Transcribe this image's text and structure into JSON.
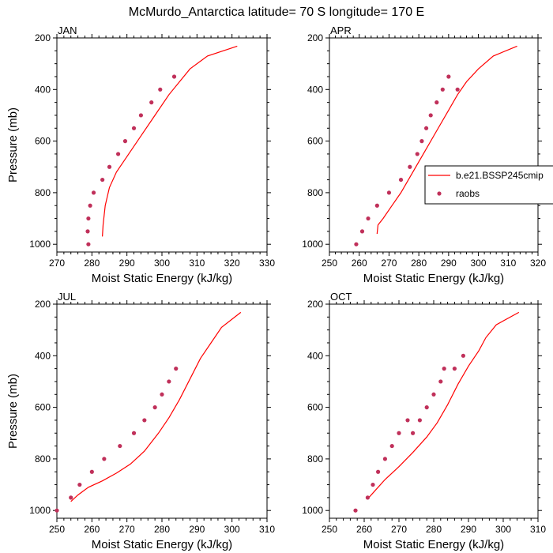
{
  "title": "McMurdo_Antarctica  latitude= 70 S longitude= 170 E",
  "colors": {
    "model": "#ff0000",
    "obs": "#c0305a",
    "axis": "#000000"
  },
  "legend": {
    "placement": "right-middle",
    "model_label": "b.e21.BSSP245cmip",
    "obs_label": "raobs"
  },
  "chart_data": [
    {
      "type": "line",
      "title": "JAN",
      "xlabel": "Moist Static Energy (kJ/kg)",
      "ylabel": "Pressure (mb)",
      "xlim": [
        270,
        330
      ],
      "ylim": [
        1030,
        200
      ],
      "xticks": [
        270,
        280,
        290,
        300,
        310,
        320,
        330
      ],
      "yticks": [
        200,
        400,
        600,
        800,
        1000
      ],
      "series": [
        {
          "name": "b.e21.BSSP245cmip",
          "kind": "line",
          "x": [
            283,
            283.2,
            283.8,
            285,
            287,
            290,
            294,
            298,
            302,
            305,
            308,
            313,
            321.5
          ],
          "y": [
            970,
            925,
            850,
            780,
            720,
            660,
            580,
            500,
            420,
            370,
            320,
            270,
            232
          ]
        },
        {
          "name": "raobs",
          "kind": "markers",
          "x": [
            279,
            278.8,
            279,
            279.5,
            280.5,
            283,
            285,
            287.5,
            289.5,
            292,
            294,
            297,
            299.5,
            303.5
          ],
          "y": [
            1000,
            950,
            900,
            850,
            800,
            750,
            700,
            650,
            600,
            550,
            500,
            450,
            400,
            350
          ]
        }
      ]
    },
    {
      "type": "line",
      "title": "APR",
      "xlabel": "Moist Static Energy (kJ/kg)",
      "ylabel": "",
      "xlim": [
        250,
        320
      ],
      "ylim": [
        1030,
        200
      ],
      "xticks": [
        250,
        260,
        270,
        280,
        290,
        300,
        310,
        320
      ],
      "yticks": [
        200,
        400,
        600,
        800,
        1000
      ],
      "series": [
        {
          "name": "b.e21.BSSP245cmip",
          "kind": "line",
          "x": [
            266,
            266.3,
            268,
            271,
            274,
            278,
            282,
            286,
            290,
            293,
            296,
            300,
            305,
            313
          ],
          "y": [
            960,
            925,
            900,
            850,
            800,
            720,
            640,
            560,
            480,
            420,
            370,
            320,
            270,
            232
          ]
        },
        {
          "name": "raobs",
          "kind": "markers",
          "x": [
            259,
            261,
            263,
            266,
            270,
            274,
            277,
            279.5,
            281,
            282.5,
            284,
            286,
            288,
            290,
            293
          ],
          "y": [
            1000,
            950,
            900,
            850,
            800,
            750,
            700,
            650,
            600,
            550,
            500,
            450,
            400,
            350,
            400
          ]
        }
      ]
    },
    {
      "type": "line",
      "title": "JUL",
      "xlabel": "Moist Static Energy (kJ/kg)",
      "ylabel": "Pressure (mb)",
      "xlim": [
        250,
        310
      ],
      "ylim": [
        1030,
        200
      ],
      "xticks": [
        250,
        260,
        270,
        280,
        290,
        300,
        310
      ],
      "yticks": [
        200,
        400,
        600,
        800,
        1000
      ],
      "series": [
        {
          "name": "b.e21.BSSP245cmip",
          "kind": "line",
          "x": [
            254,
            256,
            259,
            263,
            267,
            271,
            275,
            279,
            282,
            285,
            288,
            291,
            294,
            297,
            302.5
          ],
          "y": [
            965,
            940,
            910,
            885,
            855,
            820,
            770,
            700,
            640,
            570,
            490,
            410,
            350,
            290,
            232
          ]
        },
        {
          "name": "raobs",
          "kind": "markers",
          "x": [
            250,
            254,
            256.5,
            260,
            263.5,
            268,
            272,
            275,
            278,
            280,
            282,
            284
          ],
          "y": [
            1000,
            950,
            900,
            850,
            800,
            750,
            700,
            650,
            600,
            550,
            500,
            450
          ]
        }
      ]
    },
    {
      "type": "line",
      "title": "OCT",
      "xlabel": "Moist Static Energy (kJ/kg)",
      "ylabel": "",
      "xlim": [
        250,
        310
      ],
      "ylim": [
        1030,
        200
      ],
      "xticks": [
        250,
        260,
        270,
        280,
        290,
        300,
        310
      ],
      "yticks": [
        200,
        400,
        600,
        800,
        1000
      ],
      "series": [
        {
          "name": "b.e21.BSSP245cmip",
          "kind": "line",
          "x": [
            261,
            263,
            266,
            270,
            274,
            278,
            281,
            284,
            287,
            290,
            293,
            295,
            298,
            304.5
          ],
          "y": [
            955,
            925,
            880,
            830,
            775,
            715,
            660,
            590,
            510,
            440,
            380,
            330,
            280,
            232
          ]
        },
        {
          "name": "raobs",
          "kind": "markers",
          "x": [
            257.5,
            261,
            262.5,
            264,
            266,
            268,
            270,
            272.5,
            274,
            276,
            278,
            280,
            282,
            283,
            286,
            288.5
          ],
          "y": [
            1000,
            950,
            900,
            850,
            800,
            750,
            700,
            650,
            700,
            650,
            600,
            550,
            500,
            450,
            450,
            400
          ]
        }
      ]
    }
  ]
}
